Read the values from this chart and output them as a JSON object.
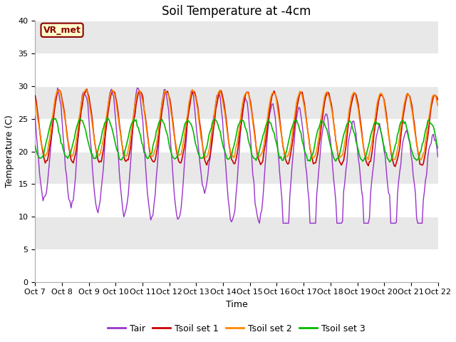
{
  "title": "Soil Temperature at -4cm",
  "xlabel": "Time",
  "ylabel": "Temperature (C)",
  "ylim": [
    0,
    40
  ],
  "yticks": [
    0,
    5,
    10,
    15,
    20,
    25,
    30,
    35,
    40
  ],
  "x_labels": [
    "Oct 7",
    "Oct 8",
    "Oct 9",
    "Oct 10",
    "Oct 11",
    "Oct 12",
    "Oct 13",
    "Oct 14",
    "Oct 15",
    "Oct 16",
    "Oct 17",
    "Oct 18",
    "Oct 19",
    "Oct 20",
    "Oct 21",
    "Oct 22"
  ],
  "annotation_text": "VR_met",
  "annotation_color": "#8B0000",
  "annotation_bg": "#FFFFCC",
  "fig_bg": "#FFFFFF",
  "plot_bg": "#E8E8E8",
  "grid_color": "#FFFFFF",
  "series_colors": [
    "#9933CC",
    "#CC0000",
    "#FF8800",
    "#00BB00"
  ],
  "series_labels": [
    "Tair",
    "Tsoil set 1",
    "Tsoil set 2",
    "Tsoil set 3"
  ],
  "title_fontsize": 12,
  "axis_label_fontsize": 9,
  "tick_fontsize": 8
}
